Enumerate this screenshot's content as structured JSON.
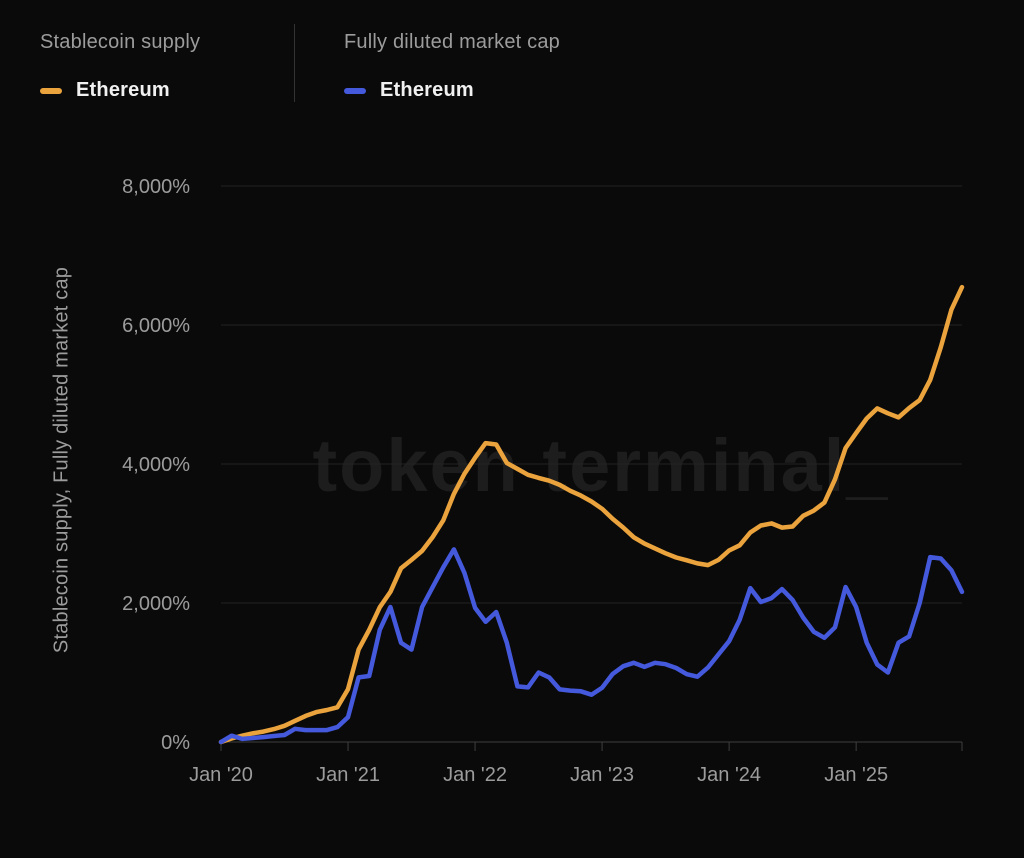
{
  "watermark": "token terminal_",
  "legend": {
    "groups": [
      {
        "metric": "Stablecoin supply",
        "series": "Ethereum",
        "color": "#eba43d"
      },
      {
        "metric": "Fully diluted market cap",
        "series": "Ethereum",
        "color": "#4459db"
      }
    ]
  },
  "chart_data": {
    "type": "line",
    "title": "",
    "xlabel": "",
    "ylabel": "Stablecoin supply, Fully diluted market cap",
    "unit": "%",
    "ylim": [
      0,
      8000
    ],
    "grid": "horizontal",
    "legend_position": "top-left",
    "y_tick_values": [
      0,
      2000,
      4000,
      6000,
      8000
    ],
    "y_tick_labels": [
      "0%",
      "2,000%",
      "4,000%",
      "6,000%",
      "8,000%"
    ],
    "x_tick_month_indices": [
      0,
      12,
      24,
      36,
      48,
      60
    ],
    "x_tick_labels": [
      "Jan '20",
      "Jan '21",
      "Jan '22",
      "Jan '23",
      "Jan '24",
      "Jan '25"
    ],
    "x": [
      "2020-01",
      "2020-02",
      "2020-03",
      "2020-04",
      "2020-05",
      "2020-06",
      "2020-07",
      "2020-08",
      "2020-09",
      "2020-10",
      "2020-11",
      "2020-12",
      "2021-01",
      "2021-02",
      "2021-03",
      "2021-04",
      "2021-05",
      "2021-06",
      "2021-07",
      "2021-08",
      "2021-09",
      "2021-10",
      "2021-11",
      "2021-12",
      "2022-01",
      "2022-02",
      "2022-03",
      "2022-04",
      "2022-05",
      "2022-06",
      "2022-07",
      "2022-08",
      "2022-09",
      "2022-10",
      "2022-11",
      "2022-12",
      "2023-01",
      "2023-02",
      "2023-03",
      "2023-04",
      "2023-05",
      "2023-06",
      "2023-07",
      "2023-08",
      "2023-09",
      "2023-10",
      "2023-11",
      "2023-12",
      "2024-01",
      "2024-02",
      "2024-03",
      "2024-04",
      "2024-05",
      "2024-06",
      "2024-07",
      "2024-08",
      "2024-09",
      "2024-10",
      "2024-11",
      "2024-12",
      "2025-01",
      "2025-02",
      "2025-03",
      "2025-04",
      "2025-05",
      "2025-06",
      "2025-07",
      "2025-08",
      "2025-09",
      "2025-10",
      "2025-11"
    ],
    "series": [
      {
        "name": "Stablecoin supply — Ethereum",
        "color": "#eba43d",
        "values": [
          0,
          50,
          90,
          125,
          150,
          185,
          233,
          305,
          375,
          430,
          460,
          500,
          760,
          1330,
          1615,
          1940,
          2160,
          2500,
          2620,
          2750,
          2950,
          3190,
          3570,
          3860,
          4090,
          4300,
          4280,
          4015,
          3930,
          3845,
          3800,
          3760,
          3700,
          3615,
          3545,
          3460,
          3355,
          3210,
          3085,
          2945,
          2855,
          2785,
          2715,
          2655,
          2615,
          2570,
          2545,
          2620,
          2755,
          2830,
          3015,
          3115,
          3145,
          3085,
          3100,
          3255,
          3330,
          3445,
          3780,
          4230,
          4445,
          4655,
          4800,
          4730,
          4670,
          4805,
          4920,
          5210,
          5680,
          6220,
          6545
        ]
      },
      {
        "name": "Fully diluted market cap — Ethereum",
        "color": "#4459db",
        "values": [
          0,
          90,
          45,
          57,
          71,
          86,
          100,
          190,
          171,
          171,
          171,
          214,
          357,
          929,
          950,
          1615,
          1943,
          1429,
          1330,
          1943,
          2229,
          2514,
          2771,
          2430,
          1930,
          1730,
          1870,
          1430,
          800,
          786,
          1000,
          930,
          757,
          740,
          730,
          680,
          780,
          980,
          1090,
          1140,
          1080,
          1140,
          1120,
          1065,
          975,
          940,
          1070,
          1260,
          1450,
          1760,
          2215,
          2015,
          2070,
          2200,
          2043,
          1790,
          1586,
          1500,
          1650,
          2230,
          1943,
          1429,
          1114,
          1000,
          1429,
          1520,
          2000,
          2660,
          2640,
          2470,
          2160
        ]
      }
    ],
    "style": {
      "background": "#0a0a0a",
      "grid_color": "#222222",
      "axis_color": "#3f3f3f",
      "tick_label_color": "#9c9c9c",
      "watermark_color": "#1d1d1d"
    }
  }
}
